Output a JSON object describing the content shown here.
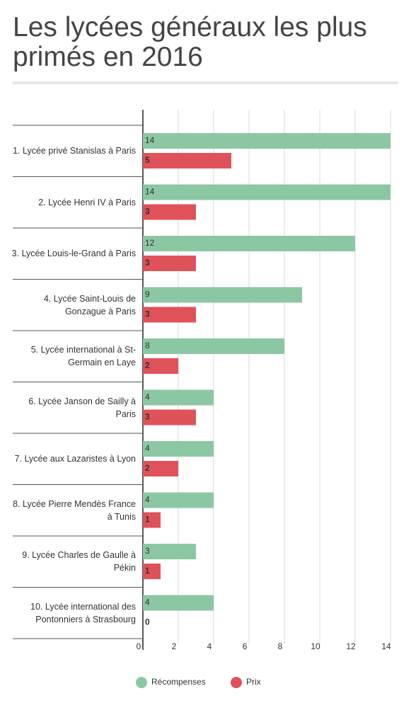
{
  "chart_data": {
    "type": "bar",
    "orientation": "horizontal",
    "title": "Les lycées généraux les plus primés en 2016",
    "categories": [
      "1. Lycée privé Stanislas à Paris",
      "2. Lycée Henri IV à Paris",
      "3. Lycée Louis-le-Grand à Paris",
      "4. Lycée Saint-Louis de Gonzague à Paris",
      "5. Lycée international à St-Germain en Laye",
      "6. Lycée Janson de Sailly à Paris",
      "7. Lycée aux Lazaristes à Lyon",
      "8. Lycée Pierre Mendès France à Tunis",
      "9. Lycée Charles de Gaulle à Pékin",
      "10. Lycée international des Pontonniers à Strasbourg"
    ],
    "series": [
      {
        "name": "Récompenses",
        "color": "#8cc7a3",
        "values": [
          14,
          14,
          12,
          9,
          8,
          4,
          4,
          4,
          3,
          4
        ]
      },
      {
        "name": "Prix",
        "color": "#e0525a",
        "values": [
          5,
          3,
          3,
          3,
          2,
          3,
          2,
          1,
          1,
          0
        ]
      }
    ],
    "xlim": [
      0,
      14
    ],
    "xticks": [
      0,
      2,
      4,
      6,
      8,
      10,
      12,
      14
    ],
    "grid": true,
    "legend": "bottom"
  }
}
